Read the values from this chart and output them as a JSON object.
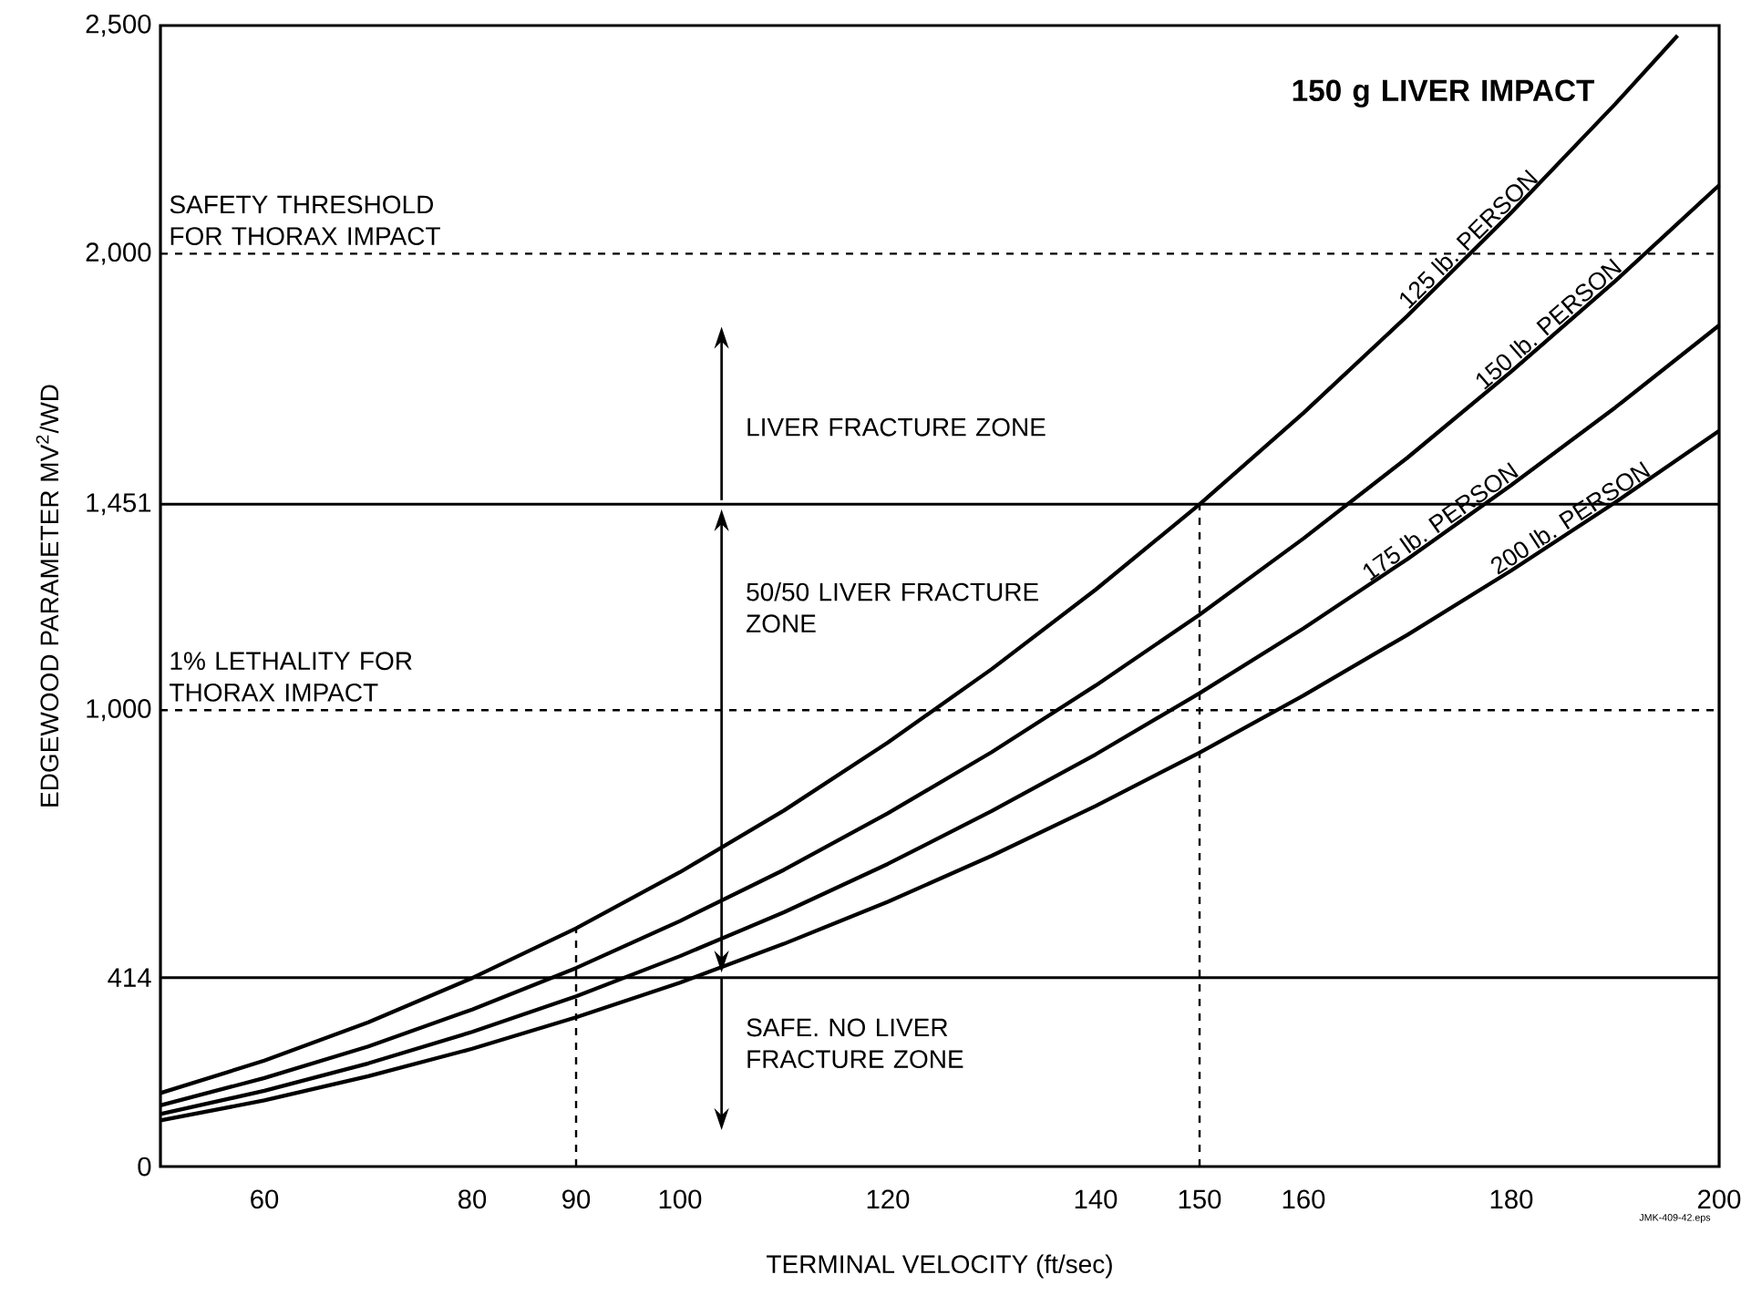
{
  "chart_data": {
    "type": "line",
    "title": "150 g LIVER IMPACT",
    "xlabel": "TERMINAL VELOCITY (ft/sec)",
    "ylabel": "EDGEWOOD PARAMETER  MV$^{2}$/WD",
    "x": [
      50,
      60,
      70,
      80,
      90,
      100,
      110,
      120,
      130,
      140,
      150,
      160,
      170,
      180,
      190,
      196
    ],
    "series": [
      {
        "name": "125 lb. PERSON",
        "color": "#000000",
        "values": [
          161,
          232,
          316,
          413,
          522,
          645,
          780,
          929,
          1090,
          1264,
          1451,
          1651,
          1864,
          2090,
          2328,
          2478
        ]
      },
      {
        "name": "150 lb. PERSON",
        "color": "#000000",
        "x": [
          50,
          60,
          70,
          80,
          90,
          100,
          110,
          120,
          130,
          140,
          150,
          160,
          170,
          180,
          190,
          200
        ],
        "values": [
          134,
          194,
          263,
          344,
          435,
          538,
          650,
          774,
          908,
          1054,
          1209,
          1376,
          1553,
          1742,
          1940,
          2150
        ]
      },
      {
        "name": "175 lb. PERSON",
        "color": "#000000",
        "x": [
          50,
          60,
          70,
          80,
          90,
          100,
          110,
          120,
          130,
          140,
          150,
          160,
          170,
          180,
          190,
          200
        ],
        "values": [
          115,
          166,
          226,
          295,
          373,
          461,
          557,
          663,
          779,
          903,
          1037,
          1179,
          1331,
          1493,
          1663,
          1843
        ]
      },
      {
        "name": "200 lb. PERSON",
        "color": "#000000",
        "x": [
          50,
          60,
          70,
          80,
          90,
          100,
          110,
          120,
          130,
          140,
          150,
          160,
          170,
          180,
          190,
          200
        ],
        "values": [
          101,
          145,
          198,
          258,
          327,
          403,
          488,
          580,
          681,
          790,
          907,
          1032,
          1165,
          1306,
          1455,
          1612
        ]
      }
    ],
    "xlim": [
      50,
      200
    ],
    "ylim": [
      0,
      2500
    ],
    "xticks": [
      60,
      80,
      90,
      100,
      120,
      140,
      150,
      160,
      180,
      200
    ],
    "yticks": [
      0,
      414,
      {
        "value": 1000,
        "label": "1,000"
      },
      {
        "value": 1451,
        "label": "1,451"
      },
      {
        "value": 2000,
        "label": "2,000"
      },
      {
        "value": 2500,
        "label": "2,500"
      }
    ],
    "ref_lines": [
      {
        "axis": "y",
        "value": 2000,
        "label": "SAFETY THRESHOLD FOR THORAX IMPACT",
        "line_style": "dashed"
      },
      {
        "axis": "y",
        "value": 1451,
        "line_style": "solid"
      },
      {
        "axis": "y",
        "value": 1000,
        "label": "1% LETHALITY FOR THORAX IMPACT",
        "line_style": "dashed"
      },
      {
        "axis": "y",
        "value": 414,
        "line_style": "solid"
      },
      {
        "axis": "x",
        "value": 90,
        "line_style": "dashed"
      },
      {
        "axis": "x",
        "value": 150,
        "line_style": "dashed"
      }
    ],
    "annotations": [
      "LIVER FRACTURE ZONE",
      "50/50 LIVER FRACTURE ZONE",
      "SAFE. NO LIVER FRACTURE ZONE",
      "JMK-409-42.eps"
    ],
    "grid": false,
    "marker": "none",
    "line_style": "solid"
  }
}
